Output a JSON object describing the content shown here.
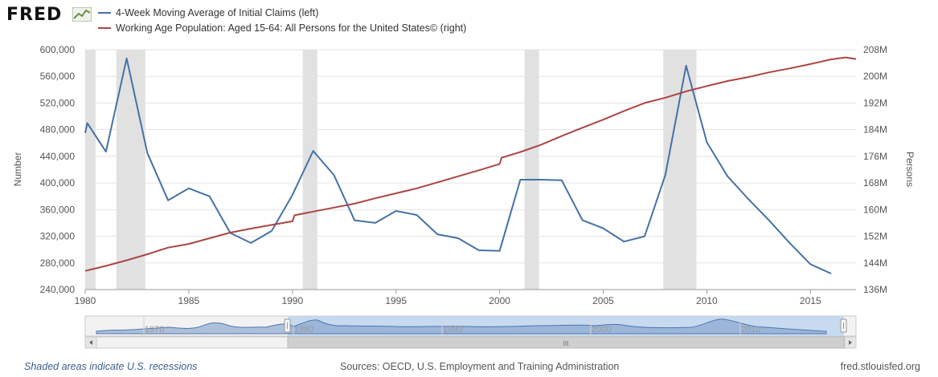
{
  "logo": {
    "text": "FRED"
  },
  "legend": [
    {
      "label": "4-Week Moving Average of Initial Claims (left)",
      "color": "#4572a7"
    },
    {
      "label": "Working Age Population: Aged 15-64: All Persons for the United States© (right)",
      "color": "#aa4643"
    }
  ],
  "footer": {
    "recession_note": "Shaded areas indicate U.S. recessions",
    "sources": "Sources: OECD, U.S. Employment and Training Administration",
    "site": "fred.stlouisfed.org"
  },
  "navigator": {
    "tick_labels": [
      "1970",
      "1980",
      "1990",
      "2000",
      "2010"
    ],
    "scroll_grip": "III"
  },
  "chart_data": {
    "type": "line",
    "xlim": [
      1980,
      2017.2
    ],
    "x_ticks": [
      1980,
      1985,
      1990,
      1995,
      2000,
      2005,
      2010,
      2015
    ],
    "ylabel_left": "Number",
    "ylabel_right": "Persons",
    "ylim_left": [
      240000,
      600000
    ],
    "ylim_right": [
      136,
      208
    ],
    "left_tick_labels": [
      "240,000",
      "280,000",
      "320,000",
      "360,000",
      "400,000",
      "440,000",
      "480,000",
      "520,000",
      "560,000",
      "600,000"
    ],
    "right_tick_labels": [
      "136M",
      "144M",
      "152M",
      "160M",
      "168M",
      "176M",
      "184M",
      "192M",
      "200M",
      "208M"
    ],
    "grid": true,
    "recessions": [
      [
        1980.0,
        1980.5
      ],
      [
        1981.5,
        1982.9
      ],
      [
        1990.5,
        1991.2
      ],
      [
        2001.2,
        2001.9
      ],
      [
        2007.9,
        2009.5
      ]
    ],
    "series": [
      {
        "name": "4-Week Moving Average of Initial Claims (left)",
        "axis": "left",
        "color": "#4572a7",
        "x": [
          1980.0,
          1980.1,
          1981.0,
          1982.0,
          1983.0,
          1984.0,
          1985.0,
          1986.0,
          1987.0,
          1988.0,
          1989.0,
          1990.0,
          1991.0,
          1992.0,
          1993.0,
          1994.0,
          1995.0,
          1996.0,
          1997.0,
          1998.0,
          1999.0,
          2000.0,
          2001.0,
          2002.0,
          2003.0,
          2004.0,
          2005.0,
          2006.0,
          2007.0,
          2008.0,
          2009.0,
          2010.0,
          2011.0,
          2012.0,
          2013.0,
          2014.0,
          2015.0,
          2016.0
        ],
        "y": [
          475000,
          490000,
          447000,
          587000,
          445000,
          374000,
          392000,
          380000,
          325000,
          310000,
          328000,
          382000,
          448000,
          412000,
          344000,
          340000,
          358000,
          352000,
          323000,
          317000,
          299000,
          298000,
          405000,
          405000,
          404000,
          344000,
          332000,
          312000,
          320000,
          412000,
          576000,
          461000,
          410000,
          376000,
          344000,
          310000,
          278000,
          264000
        ]
      },
      {
        "name": "Working Age Population: Aged 15-64: All Persons for the United States© (right)",
        "axis": "right",
        "color": "#aa4643",
        "x": [
          1980.0,
          1981.0,
          1982.0,
          1983.0,
          1984.0,
          1985.0,
          1986.0,
          1987.0,
          1988.0,
          1989.0,
          1990.0,
          1990.1,
          1991.0,
          1992.0,
          1993.0,
          1994.0,
          1995.0,
          1996.0,
          1997.0,
          1998.0,
          1999.0,
          2000.0,
          2000.1,
          2001.0,
          2002.0,
          2003.0,
          2004.0,
          2005.0,
          2006.0,
          2007.0,
          2008.0,
          2009.0,
          2010.0,
          2011.0,
          2012.0,
          2013.0,
          2014.0,
          2015.0,
          2016.0,
          2016.7,
          2017.2
        ],
        "y": [
          141.6,
          143.1,
          144.8,
          146.6,
          148.6,
          149.7,
          151.4,
          153.1,
          154.3,
          155.4,
          156.5,
          158.3,
          159.4,
          160.6,
          161.8,
          163.4,
          164.9,
          166.4,
          168.2,
          170.0,
          171.8,
          173.7,
          175.6,
          177.3,
          179.5,
          182.1,
          184.6,
          187.0,
          189.6,
          192.0,
          193.6,
          195.5,
          197.1,
          198.6,
          199.8,
          201.2,
          202.4,
          203.7,
          205.1,
          205.7,
          205.2
        ]
      }
    ]
  }
}
